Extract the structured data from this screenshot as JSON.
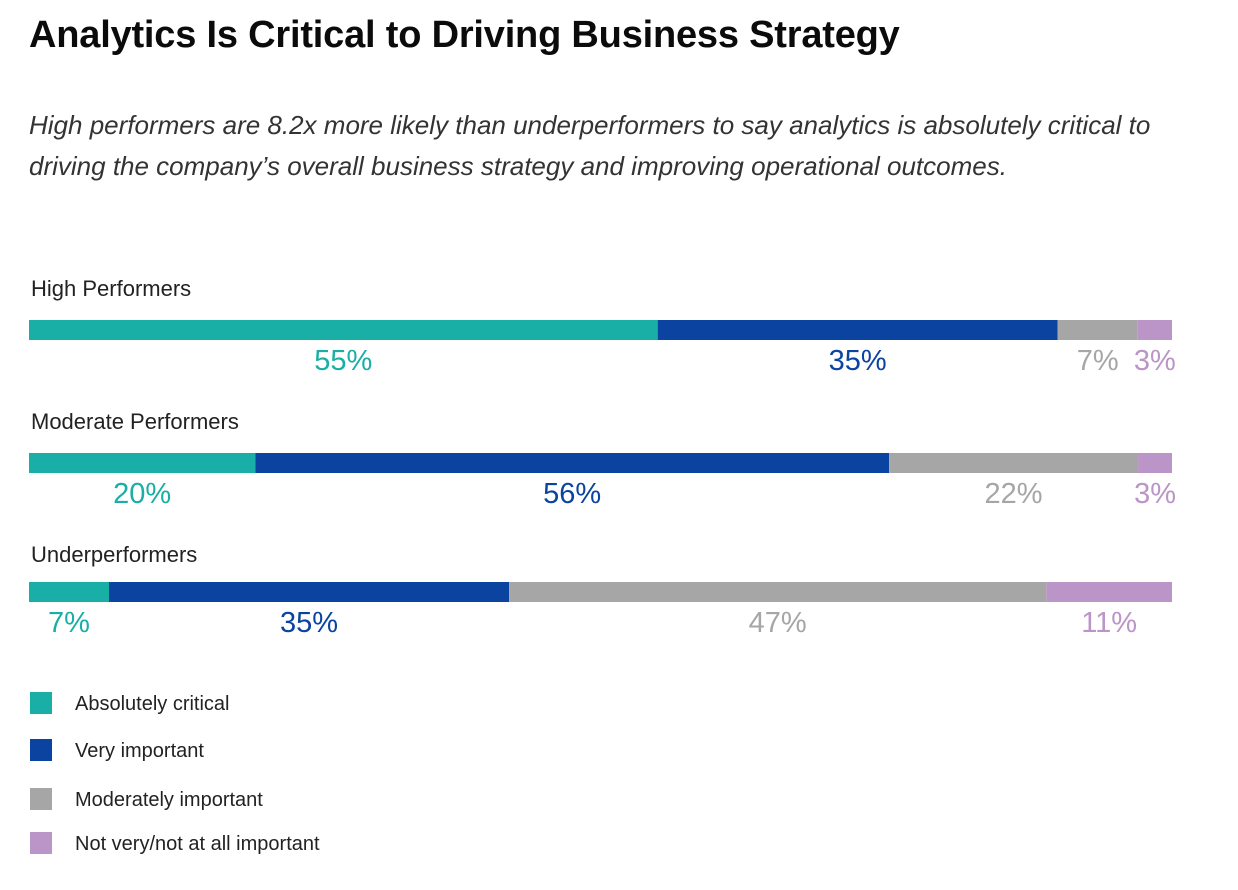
{
  "title": "Analytics Is Critical to Driving Business Strategy",
  "subtitle": "High performers are 8.2x more likely than underperformers to say analytics is absolutely critical to driving the company’s overall business strategy and improving operational outcomes.",
  "chart_data": {
    "type": "bar",
    "orientation": "horizontal",
    "stacked": true,
    "categories": [
      "High Performers",
      "Moderate Performers",
      "Underperformers"
    ],
    "series": [
      {
        "name": "Absolutely critical",
        "color": "#1aafa6",
        "values": [
          55,
          20,
          7
        ]
      },
      {
        "name": "Very important",
        "color": "#0a44a0",
        "values": [
          35,
          56,
          35
        ]
      },
      {
        "name": "Moderately important",
        "color": "#a6a6a6",
        "values": [
          7,
          22,
          47
        ]
      },
      {
        "name": "Not very/not at all important",
        "color": "#bb95c8",
        "values": [
          3,
          3,
          11
        ]
      }
    ],
    "value_labels": [
      [
        "55%",
        "35%",
        "7%",
        "3%"
      ],
      [
        "20%",
        "56%",
        "22%",
        "3%"
      ],
      [
        "7%",
        "35%",
        "47%",
        "11%"
      ]
    ],
    "legend_position": "bottom-left",
    "grid": false
  }
}
